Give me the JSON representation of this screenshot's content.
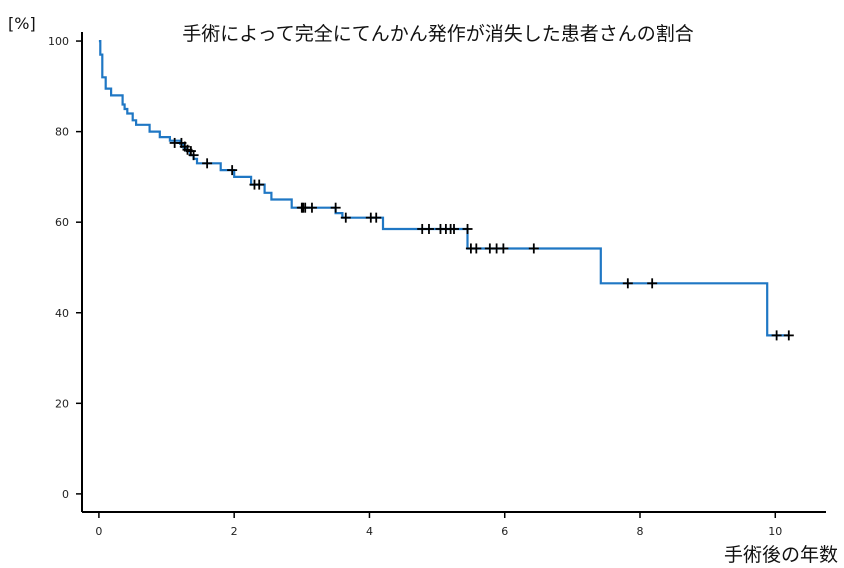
{
  "chart_data": {
    "type": "line",
    "title": "手術によって完全にてんかん発作が消失した患者さんの割合",
    "xlabel": "手術後の年数",
    "ylabel": "[%]",
    "xlim": [
      -0.25,
      10.75
    ],
    "ylim": [
      -4,
      102
    ],
    "xticks": [
      "0",
      "2",
      "4",
      "6",
      "8",
      "10"
    ],
    "yticks": [
      "0",
      "20",
      "40",
      "60",
      "80",
      "100"
    ],
    "grid": false,
    "series": [
      {
        "color": "#1f77c4",
        "x": [
          0.0,
          0.02,
          0.02,
          0.05,
          0.05,
          0.1,
          0.1,
          0.18,
          0.18,
          0.35,
          0.35,
          0.38,
          0.38,
          0.42,
          0.42,
          0.5,
          0.5,
          0.55,
          0.55,
          0.75,
          0.75,
          0.9,
          0.9,
          1.05,
          1.05,
          1.2,
          1.2,
          1.25,
          1.25,
          1.3,
          1.3,
          1.35,
          1.35,
          1.4,
          1.4,
          1.45,
          1.45,
          1.8,
          1.8,
          2.0,
          2.0,
          2.25,
          2.25,
          2.45,
          2.45,
          2.55,
          2.55,
          2.85,
          2.85,
          3.5,
          3.5,
          3.6,
          3.6,
          4.2,
          4.2,
          5.45,
          5.45,
          7.42,
          7.42,
          9.88,
          9.88,
          10.2
        ],
        "y": [
          100,
          100,
          97,
          97,
          92,
          92,
          89.5,
          89.5,
          88,
          88,
          86,
          86,
          85,
          85,
          84,
          84,
          82.5,
          82.5,
          81.5,
          81.5,
          80,
          80,
          78.8,
          78.8,
          78,
          78,
          77.3,
          77.3,
          76.5,
          76.5,
          75.7,
          75.7,
          74.8,
          74.8,
          74,
          74,
          73,
          73,
          71.5,
          71.5,
          70,
          70,
          68.3,
          68.3,
          66.5,
          66.5,
          65,
          65,
          63.2,
          63.2,
          62,
          62,
          61,
          61,
          58.5,
          58.5,
          54.2,
          54.2,
          46.5,
          46.5,
          35,
          35
        ]
      }
    ],
    "censored": {
      "x": [
        1.12,
        1.22,
        1.27,
        1.31,
        1.36,
        1.4,
        1.6,
        1.97,
        2.3,
        2.37,
        3.0,
        3.02,
        3.05,
        3.15,
        3.5,
        3.65,
        4.02,
        4.1,
        4.78,
        4.88,
        5.05,
        5.13,
        5.2,
        5.25,
        5.45,
        5.5,
        5.58,
        5.78,
        5.88,
        5.98,
        6.43,
        7.82,
        8.18,
        10.02,
        10.2
      ],
      "y": [
        77.5,
        77.5,
        76.7,
        76.0,
        75.7,
        74.8,
        73.0,
        71.5,
        68.3,
        68.3,
        63.2,
        63.2,
        63.2,
        63.2,
        63.2,
        61.0,
        61.0,
        61.0,
        58.5,
        58.5,
        58.5,
        58.5,
        58.5,
        58.5,
        58.5,
        54.2,
        54.2,
        54.2,
        54.2,
        54.2,
        54.2,
        46.5,
        46.5,
        35.0,
        35.0
      ]
    }
  }
}
